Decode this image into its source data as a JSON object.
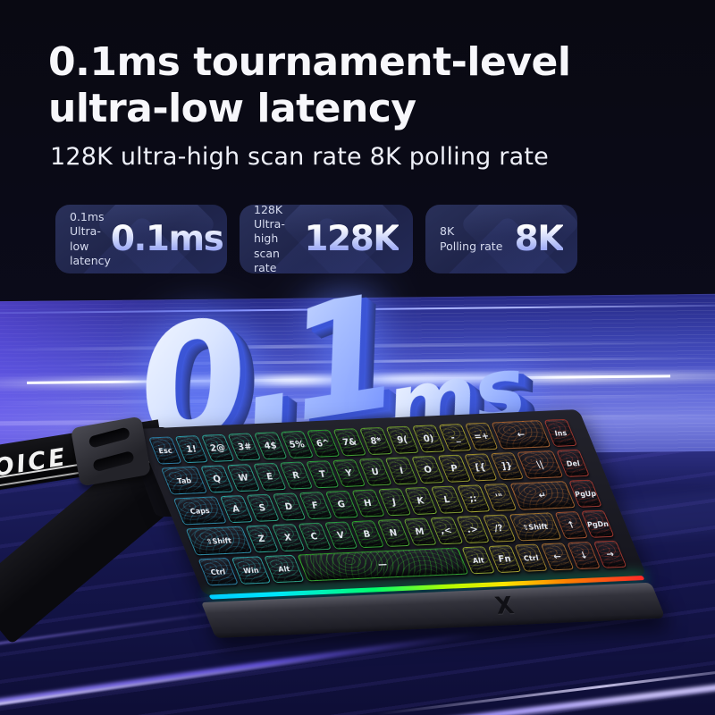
{
  "header": {
    "title": "0.1ms tournament-level\nultra-low latency",
    "subtitle": "128K ultra-high scan rate 8K polling rate"
  },
  "badges": [
    {
      "label": "0.1ms\nUltra-low\nlatency",
      "value": "0.1ms"
    },
    {
      "label": "128K\nUltra-high\nscan rate",
      "value": "128K"
    },
    {
      "label": "8K\nPolling rate",
      "value": "8K"
    }
  ],
  "hero": {
    "big": "0.1",
    "unit": "ms"
  },
  "strap": {
    "text": "OICE"
  },
  "brand": {
    "logo": "X"
  },
  "colors": {
    "headline_text": "#f7f7fb",
    "badge_background": "#1e2348",
    "badge_value_gradient": [
      "#ffffff",
      "#7d8bf0"
    ],
    "hero_face_gradient": [
      "#f4f8ff",
      "#7f9bff"
    ],
    "hero_extrude": "#3b55d6",
    "band_highlight": "#ffffff",
    "underglow_rainbow": [
      "#00cfff",
      "#00ff6e",
      "#ffe600",
      "#ff8400",
      "#ff2a2a"
    ],
    "streak_purple": "#9b8cff"
  },
  "keyboard": {
    "units_per_row": 16,
    "rows": [
      [
        [
          "Esc",
          1
        ],
        [
          "1!",
          1
        ],
        [
          "2@",
          1
        ],
        [
          "3#",
          1
        ],
        [
          "4$",
          1
        ],
        [
          "5%",
          1
        ],
        [
          "6^",
          1
        ],
        [
          "7&",
          1
        ],
        [
          "8*",
          1
        ],
        [
          "9(",
          1
        ],
        [
          "0)",
          1
        ],
        [
          "-_",
          1
        ],
        [
          "=+",
          1
        ],
        [
          "←",
          2
        ],
        [
          "Ins",
          1
        ]
      ],
      [
        [
          "Tab",
          1.5
        ],
        [
          "Q",
          1
        ],
        [
          "W",
          1
        ],
        [
          "E",
          1
        ],
        [
          "R",
          1
        ],
        [
          "T",
          1
        ],
        [
          "Y",
          1
        ],
        [
          "U",
          1
        ],
        [
          "I",
          1
        ],
        [
          "O",
          1
        ],
        [
          "P",
          1
        ],
        [
          "[{",
          1
        ],
        [
          "]}",
          1
        ],
        [
          "\\|",
          1.5
        ],
        [
          "Del",
          1
        ]
      ],
      [
        [
          "Caps",
          1.75
        ],
        [
          "A",
          1
        ],
        [
          "S",
          1
        ],
        [
          "D",
          1
        ],
        [
          "F",
          1
        ],
        [
          "G",
          1
        ],
        [
          "H",
          1
        ],
        [
          "J",
          1
        ],
        [
          "K",
          1
        ],
        [
          "L",
          1
        ],
        [
          ";:",
          1
        ],
        [
          "'\"",
          1
        ],
        [
          "↵",
          2.25
        ],
        [
          "PgUp",
          1
        ]
      ],
      [
        [
          "⇧Shift",
          2.25
        ],
        [
          "Z",
          1
        ],
        [
          "X",
          1
        ],
        [
          "C",
          1
        ],
        [
          "V",
          1
        ],
        [
          "B",
          1
        ],
        [
          "N",
          1
        ],
        [
          "M",
          1
        ],
        [
          ",<",
          1
        ],
        [
          ".>",
          1
        ],
        [
          "/?",
          1
        ],
        [
          "⇧Shift",
          1.75
        ],
        [
          "↑",
          1
        ],
        [
          "PgDn",
          1
        ]
      ],
      [
        [
          "Ctrl",
          1.25
        ],
        [
          "Win",
          1.25
        ],
        [
          "Alt",
          1.25
        ],
        [
          "—",
          6.25
        ],
        [
          "Alt",
          1
        ],
        [
          "Fn",
          1
        ],
        [
          "Ctrl",
          1
        ],
        [
          "←",
          1
        ],
        [
          "↓",
          1
        ],
        [
          "→",
          1
        ]
      ]
    ]
  }
}
